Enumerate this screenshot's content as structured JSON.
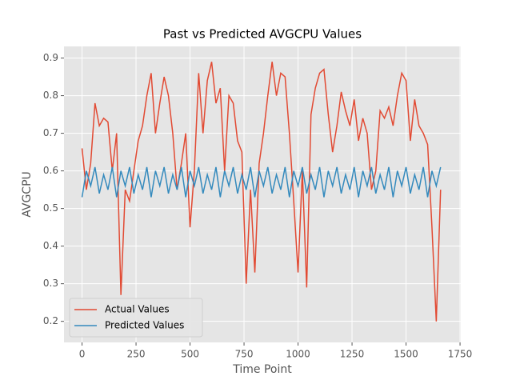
{
  "chart_data": {
    "type": "line",
    "title": "Past vs Predicted AVGCPU Values",
    "x_label": "Time Point",
    "y_label": "AVGCPU",
    "x": [
      0,
      20,
      40,
      60,
      80,
      100,
      120,
      140,
      160,
      180,
      200,
      220,
      240,
      260,
      280,
      300,
      320,
      340,
      360,
      380,
      400,
      420,
      440,
      460,
      480,
      500,
      520,
      540,
      560,
      580,
      600,
      620,
      640,
      660,
      680,
      700,
      720,
      740,
      760,
      780,
      800,
      820,
      840,
      860,
      880,
      900,
      920,
      940,
      960,
      980,
      1000,
      1020,
      1040,
      1060,
      1080,
      1100,
      1120,
      1140,
      1160,
      1180,
      1200,
      1220,
      1240,
      1260,
      1280,
      1300,
      1320,
      1340,
      1360,
      1380,
      1400,
      1420,
      1440,
      1460,
      1480,
      1500,
      1520,
      1540,
      1560,
      1580,
      1600,
      1620,
      1640,
      1660
    ],
    "series": [
      {
        "name": "Actual Values",
        "color": "#e24a33",
        "values": [
          0.66,
          0.55,
          0.62,
          0.78,
          0.72,
          0.74,
          0.73,
          0.6,
          0.7,
          0.27,
          0.55,
          0.52,
          0.6,
          0.68,
          0.72,
          0.8,
          0.86,
          0.7,
          0.78,
          0.85,
          0.8,
          0.7,
          0.55,
          0.62,
          0.7,
          0.45,
          0.6,
          0.86,
          0.7,
          0.84,
          0.89,
          0.78,
          0.82,
          0.6,
          0.8,
          0.78,
          0.68,
          0.65,
          0.3,
          0.55,
          0.33,
          0.62,
          0.7,
          0.8,
          0.89,
          0.8,
          0.86,
          0.85,
          0.7,
          0.52,
          0.33,
          0.6,
          0.29,
          0.75,
          0.82,
          0.86,
          0.87,
          0.75,
          0.65,
          0.72,
          0.81,
          0.76,
          0.72,
          0.79,
          0.68,
          0.74,
          0.7,
          0.55,
          0.6,
          0.76,
          0.74,
          0.77,
          0.72,
          0.8,
          0.86,
          0.84,
          0.68,
          0.79,
          0.72,
          0.7,
          0.67,
          0.45,
          0.2,
          0.55
        ]
      },
      {
        "name": "Predicted Values",
        "color": "#348abd",
        "values": [
          0.53,
          0.6,
          0.56,
          0.61,
          0.54,
          0.59,
          0.55,
          0.61,
          0.53,
          0.6,
          0.56,
          0.61,
          0.54,
          0.59,
          0.55,
          0.61,
          0.53,
          0.6,
          0.56,
          0.61,
          0.54,
          0.59,
          0.55,
          0.61,
          0.53,
          0.6,
          0.56,
          0.61,
          0.54,
          0.59,
          0.55,
          0.61,
          0.53,
          0.6,
          0.56,
          0.61,
          0.54,
          0.59,
          0.55,
          0.61,
          0.53,
          0.6,
          0.56,
          0.61,
          0.54,
          0.59,
          0.55,
          0.61,
          0.53,
          0.6,
          0.56,
          0.61,
          0.54,
          0.59,
          0.55,
          0.61,
          0.53,
          0.6,
          0.56,
          0.61,
          0.54,
          0.59,
          0.55,
          0.61,
          0.53,
          0.6,
          0.56,
          0.61,
          0.54,
          0.59,
          0.55,
          0.61,
          0.53,
          0.6,
          0.56,
          0.61,
          0.54,
          0.59,
          0.55,
          0.61,
          0.53,
          0.6,
          0.56,
          0.61
        ]
      }
    ],
    "xlim": [
      -83.5,
      1753.5
    ],
    "ylim": [
      0.144,
      0.931
    ],
    "xticks": [
      0,
      250,
      500,
      750,
      1000,
      1250,
      1500,
      1750
    ],
    "yticks": [
      0.2,
      0.3,
      0.4,
      0.5,
      0.6,
      0.7,
      0.8,
      0.9
    ],
    "grid": true,
    "legend": "lower left"
  }
}
